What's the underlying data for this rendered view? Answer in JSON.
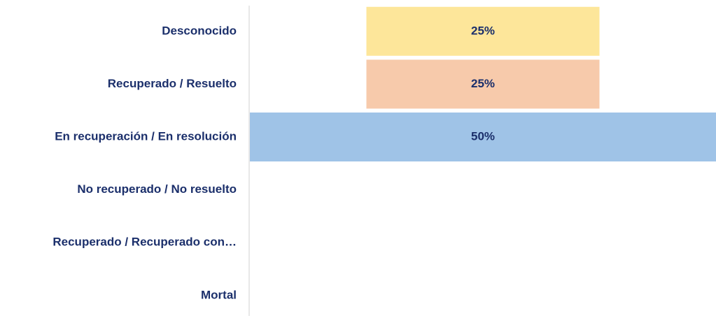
{
  "chart_data": {
    "type": "funnel",
    "categories": [
      "Desconocido",
      "Recuperado / Resuelto",
      "En recuperación / En resolución",
      "No recuperado / No resuelto",
      "Recuperado / Recuperado con…",
      "Mortal"
    ],
    "values": [
      25,
      25,
      50,
      0,
      0,
      0
    ],
    "value_labels": [
      "25%",
      "25%",
      "50%",
      null,
      null,
      null
    ],
    "colors": [
      "#fde69a",
      "#f7caab",
      "#9fc3e7",
      null,
      null,
      null
    ]
  }
}
